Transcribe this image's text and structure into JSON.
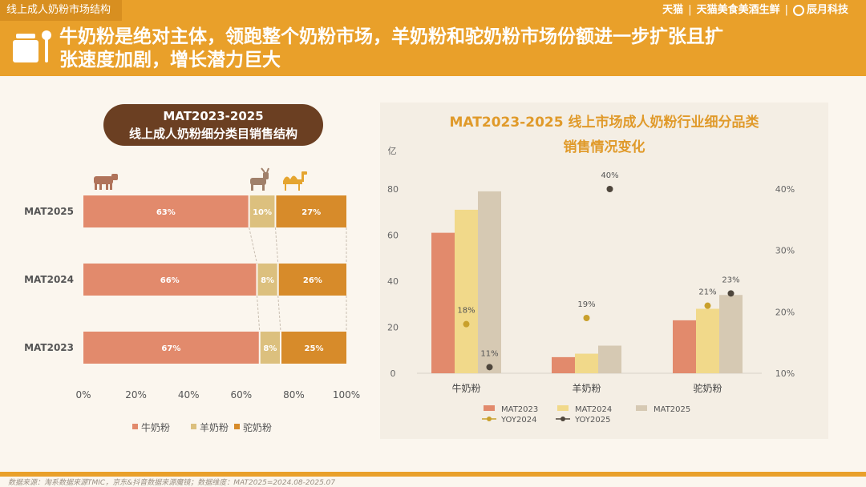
{
  "header": {
    "section_tab": "线上成人奶粉市场结构",
    "brands": [
      "天猫",
      "天猫美食美酒生鲜",
      "辰月科技"
    ],
    "headline_line1": "牛奶粉是绝对主体，领跑整个奶粉市场，羊奶粉和驼奶粉市场份额进一步扩张且扩",
    "headline_line2": "张速度加剧，增长潜力巨大"
  },
  "left_title": {
    "line1": "MAT2023-2025",
    "line2": "线上成人奶粉细分类目销售结构"
  },
  "right_title": {
    "line1": "MAT2023-2025 线上市场成人奶粉行业细分品类",
    "line2": "销售情况变化"
  },
  "footer": {
    "source": "数据来源：淘系数据来源TMIC，京东&抖音数据来源魔镜；数据维度：MAT2025=2024.08-2025.07"
  },
  "colors": {
    "cow": "#e28a6c",
    "goat": "#dcc07e",
    "camel": "#d78b2a",
    "mat2023": "#e28a6c",
    "mat2024": "#f1d98a",
    "mat2025": "#d6c9b3",
    "yoy2024": "#c9a02c",
    "yoy2025": "#4e463c"
  },
  "chart_data": [
    {
      "type": "bar",
      "orientation": "horizontal",
      "stacked": true,
      "categories": [
        "MAT2025",
        "MAT2024",
        "MAT2023"
      ],
      "series": [
        {
          "name": "牛奶粉",
          "values": [
            63,
            66,
            67
          ],
          "labels": [
            "63%",
            "66%",
            "67%"
          ]
        },
        {
          "name": "羊奶粉",
          "values": [
            10,
            8,
            8
          ],
          "labels": [
            "10%",
            "8%",
            "8%"
          ]
        },
        {
          "name": "驼奶粉",
          "values": [
            27,
            26,
            25
          ],
          "labels": [
            "27%",
            "26%",
            "25%"
          ]
        }
      ],
      "xlim": [
        0,
        100
      ],
      "xticks": [
        "0%",
        "20%",
        "40%",
        "60%",
        "80%",
        "100%"
      ],
      "legend_position": "bottom",
      "icons": [
        "cow-icon",
        "goat-icon",
        "camel-icon"
      ]
    },
    {
      "type": "bar",
      "title": "MAT2023-2025 线上市场成人奶粉行业细分品类销售情况变化",
      "categories": [
        "牛奶粉",
        "羊奶粉",
        "驼奶粉"
      ],
      "series": [
        {
          "name": "MAT2023",
          "values": [
            61,
            7,
            23
          ]
        },
        {
          "name": "MAT2024",
          "values": [
            71,
            8.5,
            28
          ]
        },
        {
          "name": "MAT2025",
          "values": [
            79,
            12,
            34
          ]
        }
      ],
      "line_series": [
        {
          "name": "YOY2024",
          "values": [
            18,
            19,
            21
          ],
          "labels": [
            "18%",
            "19%",
            "21%"
          ],
          "x_offset_series": "MAT2024"
        },
        {
          "name": "YOY2025",
          "values": [
            11,
            40,
            23
          ],
          "labels": [
            "11%",
            "40%",
            "23%"
          ],
          "x_offset_series": "MAT2025"
        }
      ],
      "ylabel": "亿",
      "ylim": [
        0,
        80
      ],
      "yticks": [
        "0",
        "20",
        "40",
        "60",
        "80"
      ],
      "y2lim": [
        10,
        40
      ],
      "y2ticks": [
        "10%",
        "20%",
        "30%",
        "40%"
      ],
      "legend_position": "bottom",
      "grid": false
    }
  ]
}
